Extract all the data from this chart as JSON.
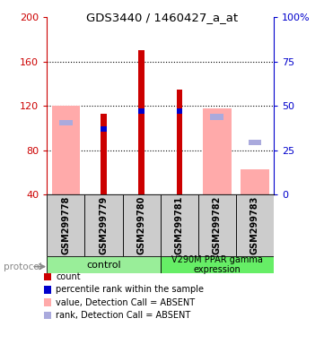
{
  "title": "GDS3440 / 1460427_a_at",
  "samples": [
    "GSM299778",
    "GSM299779",
    "GSM299780",
    "GSM299781",
    "GSM299782",
    "GSM299783"
  ],
  "ylim_left": [
    40,
    200
  ],
  "ylim_right": [
    0,
    100
  ],
  "yticks_left": [
    40,
    80,
    120,
    160,
    200
  ],
  "ytick_labels_left": [
    "40",
    "80",
    "120",
    "160",
    "200"
  ],
  "yticks_right": [
    0,
    25,
    50,
    75,
    100
  ],
  "ytick_labels_right": [
    "0",
    "25",
    "50",
    "75",
    "100%"
  ],
  "red_bars": [
    null,
    113,
    170,
    135,
    null,
    null
  ],
  "blue_bars": [
    null,
    99,
    115,
    115,
    null,
    null
  ],
  "pink_bars": [
    120,
    null,
    null,
    null,
    118,
    63
  ],
  "lightblue_bars": [
    105,
    null,
    null,
    null,
    110,
    87
  ],
  "red_color": "#cc0000",
  "blue_color": "#0000cc",
  "pink_color": "#ffaaaa",
  "lightblue_color": "#aaaadd",
  "bg_xlabel": "#cccccc",
  "bg_group_control": "#99ee99",
  "bg_group_expr": "#66ee66",
  "left_axis_color": "#cc0000",
  "right_axis_color": "#0000cc",
  "legend_items": [
    {
      "label": "count",
      "color": "#cc0000"
    },
    {
      "label": "percentile rank within the sample",
      "color": "#0000cc"
    },
    {
      "label": "value, Detection Call = ABSENT",
      "color": "#ffaaaa"
    },
    {
      "label": "rank, Detection Call = ABSENT",
      "color": "#aaaadd"
    }
  ],
  "gridlines": [
    80,
    120,
    160
  ]
}
